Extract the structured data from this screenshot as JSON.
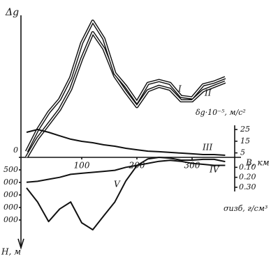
{
  "chart_data": {
    "type": "line",
    "x_label": "В, км",
    "y_label": "Δg",
    "y2_label": "δg·10⁻⁵, м/с²",
    "y3_label": "σизб, г/см³",
    "y4_label": "Н, м",
    "x": [
      0,
      20,
      40,
      60,
      80,
      100,
      120,
      140,
      160,
      180,
      200,
      220,
      240,
      260,
      280,
      300,
      320,
      340,
      360
    ],
    "xlim": [
      0,
      370
    ],
    "xticks": [
      100,
      200,
      300
    ],
    "ylim": [
      0,
      10
    ],
    "y2lim": [
      0,
      25
    ],
    "y2ticks": [
      5,
      15,
      25
    ],
    "y3lim": [
      0,
      0.3
    ],
    "y3ticks": [
      {
        "value": 0.1,
        "label": "0.10"
      },
      {
        "value": 0.2,
        "label": "0.20"
      },
      {
        "value": 0.3,
        "label": "0.30"
      }
    ],
    "y4lim": [
      0,
      2500
    ],
    "y4ticks": [
      0,
      500,
      {
        "value": 1000,
        "label": "000"
      },
      {
        "value": 1500,
        "label": "000"
      },
      {
        "value": 2000,
        "label": "000"
      },
      {
        "value": 2500,
        "label": "000"
      }
    ],
    "series": [
      {
        "name": "I",
        "color": "#111",
        "axis": "y",
        "double": true,
        "values": [
          0.1,
          1.4,
          2.4,
          3.4,
          4.8,
          6.9,
          8.7,
          7.6,
          5.7,
          4.6,
          3.6,
          4.7,
          5.0,
          4.8,
          4.0,
          4.0,
          4.7,
          5.0,
          5.3
        ]
      },
      {
        "name": "II",
        "color": "#111",
        "axis": "y",
        "double": true,
        "values": [
          0.5,
          2.0,
          3.2,
          4.1,
          5.6,
          8.0,
          9.5,
          8.3,
          5.9,
          5.0,
          3.9,
          5.2,
          5.4,
          5.2,
          4.3,
          4.2,
          5.1,
          5.3,
          5.6
        ]
      },
      {
        "name": "III",
        "color": "#111",
        "axis": "y2",
        "values": [
          22.6,
          25,
          22.6,
          19.6,
          16.7,
          14.9,
          13.7,
          11.9,
          10.7,
          8.9,
          7.7,
          6.5,
          6.0,
          5.4,
          4.8,
          4.2,
          3.6,
          3.6,
          3.0
        ]
      },
      {
        "name": "IV",
        "color": "#111",
        "axis": "y3",
        "values": [
          0.25,
          0.24,
          0.22,
          0.2,
          0.17,
          0.16,
          0.15,
          0.14,
          0.13,
          0.1,
          0.08,
          0.06,
          0.04,
          0.03,
          0.04,
          0.06,
          0.07,
          0.08,
          0.08
        ]
      },
      {
        "name": "V",
        "color": "#111",
        "axis": "y4",
        "values": [
          1220,
          1780,
          2560,
          2060,
          1780,
          2610,
          2890,
          2330,
          1780,
          940,
          330,
          60,
          0,
          30,
          110,
          110,
          80,
          80,
          170
        ]
      }
    ]
  }
}
